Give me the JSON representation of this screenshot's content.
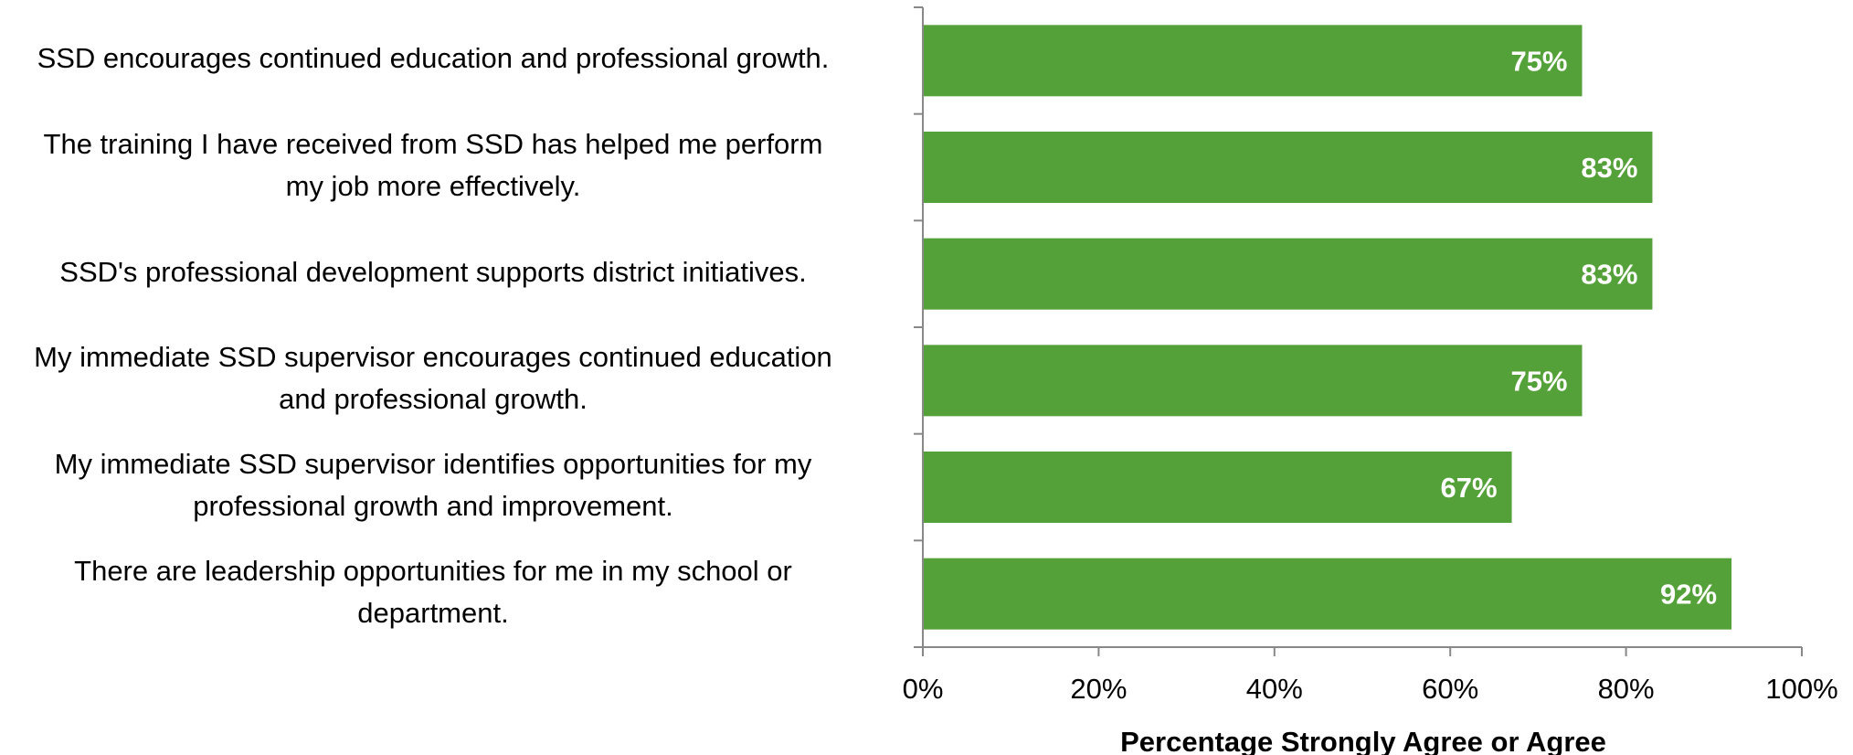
{
  "chart_data": {
    "type": "bar",
    "orientation": "horizontal",
    "categories": [
      [
        "SSD encourages continued education and professional growth."
      ],
      [
        "The training I have received from SSD  has helped me perform",
        "my job more effectively."
      ],
      [
        "SSD's professional development supports district initiatives."
      ],
      [
        "My immediate SSD supervisor encourages continued education",
        "and professional growth."
      ],
      [
        "My immediate SSD supervisor identifies opportunities for my",
        "professional growth and improvement."
      ],
      [
        "There are leadership opportunities for me in my school or",
        "department."
      ]
    ],
    "values": [
      75,
      83,
      83,
      75,
      67,
      92
    ],
    "data_labels": [
      "75%",
      "83%",
      "83%",
      "75%",
      "67%",
      "92%"
    ],
    "xlim": [
      0,
      100
    ],
    "x_ticks": [
      0,
      20,
      40,
      60,
      80,
      100
    ],
    "x_tick_labels": [
      "0%",
      "20%",
      "40%",
      "60%",
      "80%",
      "100%"
    ],
    "xlabel": "Percentage Strongly Agree or Agree",
    "ylabel": "",
    "title": "",
    "grid": false,
    "legend": "none",
    "bar_color": "#55a139",
    "axis_color": "#888888",
    "data_label_color": "#ffffff"
  }
}
